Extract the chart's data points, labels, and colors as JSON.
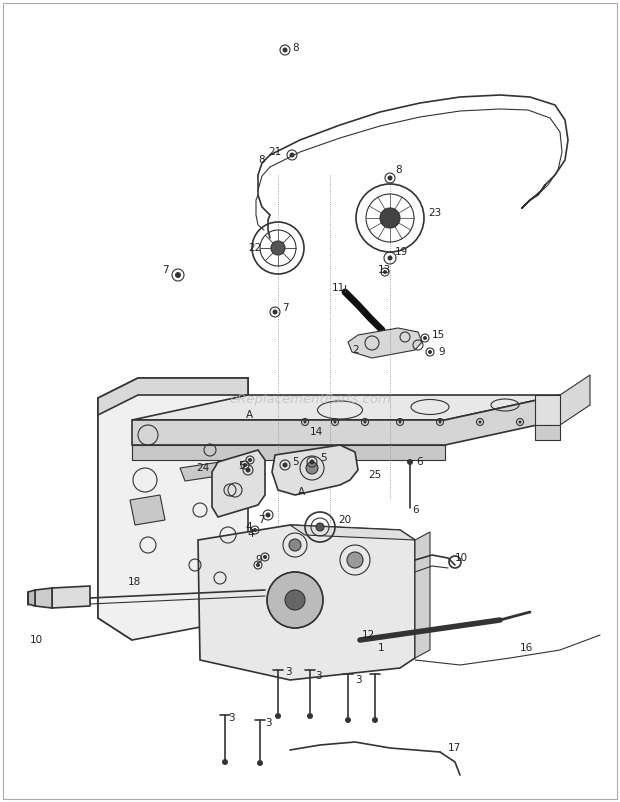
{
  "bg_color": "#ffffff",
  "line_color": "#333333",
  "label_color": "#222222",
  "watermark": "eReplacementParts.com",
  "watermark_color": "#bbbbbb",
  "fig_width": 6.2,
  "fig_height": 8.02,
  "dpi": 100
}
